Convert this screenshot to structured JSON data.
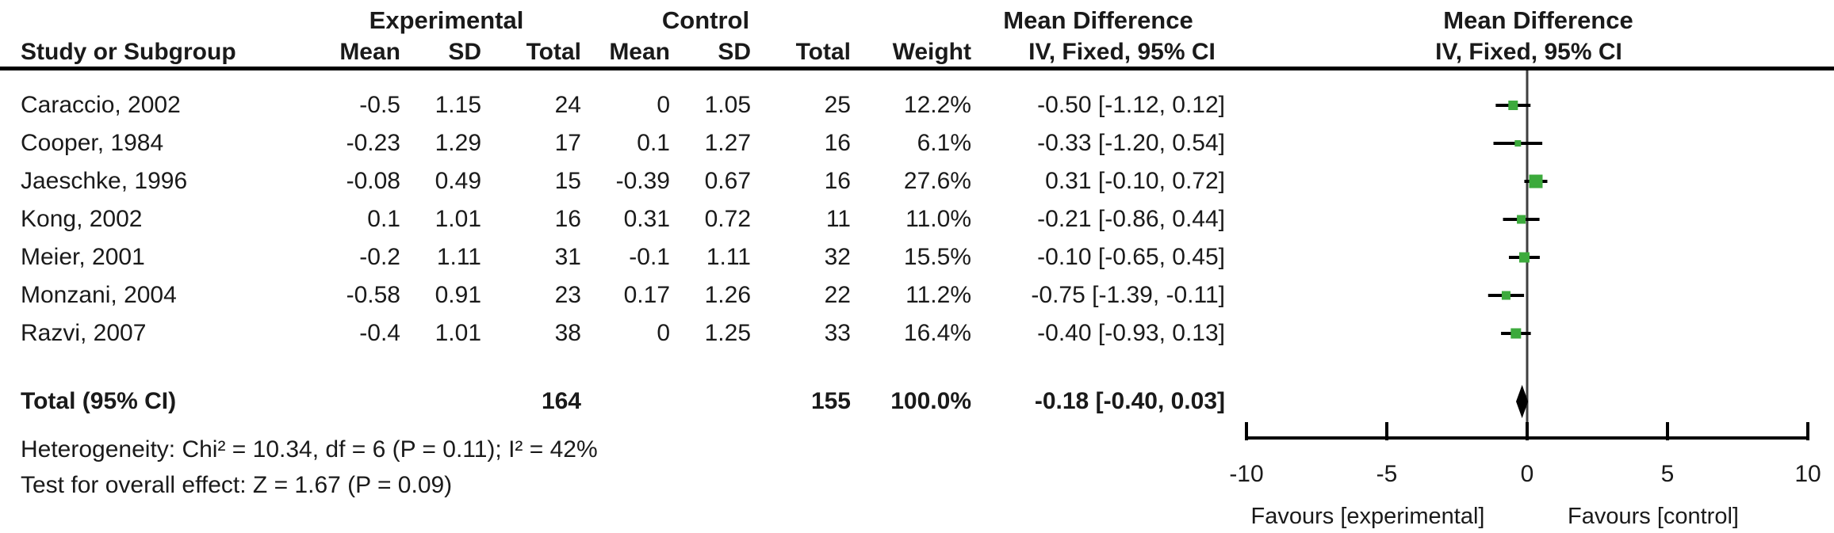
{
  "header": {
    "group_experimental": "Experimental",
    "group_control": "Control",
    "effect_header_table": "Mean Difference",
    "effect_header_plot": "Mean Difference",
    "col_study": "Study or Subgroup",
    "col_mean": "Mean",
    "col_sd": "SD",
    "col_total": "Total",
    "col_weight": "Weight",
    "col_ci": "IV, Fixed, 95% CI",
    "col_ci_plot": "IV, Fixed, 95% CI"
  },
  "footer": {
    "heterogeneity": "Heterogeneity: Chi² = 10.34, df = 6 (P = 0.11); I² = 42%",
    "overall_effect": "Test for overall effect: Z = 1.67 (P = 0.09)"
  },
  "chart_data": {
    "type": "forest",
    "effect_measure": "Mean Difference",
    "model": "IV, Fixed, 95% CI",
    "xlim": [
      -10,
      10
    ],
    "axis": {
      "ticks": [
        -10,
        -5,
        0,
        5,
        10
      ],
      "favours_left": "Favours [experimental]",
      "favours_right": "Favours [control]"
    },
    "colors": {
      "marker": "#3caa3c",
      "diamond": "#000000",
      "text": "#1a1a1a",
      "line": "#000000",
      "zero_line": "#3f3f3f"
    },
    "studies": [
      {
        "name": "Caraccio, 2002",
        "exp_mean": "-0.5",
        "exp_sd": "1.15",
        "exp_total": "24",
        "ctrl_mean": "0",
        "ctrl_sd": "1.05",
        "ctrl_total": "25",
        "weight": "12.2%",
        "ci_text": "-0.50 [-1.12, 0.12]",
        "md": -0.5,
        "lo": -1.12,
        "hi": 0.12,
        "w": 12.2
      },
      {
        "name": "Cooper, 1984",
        "exp_mean": "-0.23",
        "exp_sd": "1.29",
        "exp_total": "17",
        "ctrl_mean": "0.1",
        "ctrl_sd": "1.27",
        "ctrl_total": "16",
        "weight": "6.1%",
        "ci_text": "-0.33 [-1.20, 0.54]",
        "md": -0.33,
        "lo": -1.2,
        "hi": 0.54,
        "w": 6.1
      },
      {
        "name": "Jaeschke, 1996",
        "exp_mean": "-0.08",
        "exp_sd": "0.49",
        "exp_total": "15",
        "ctrl_mean": "-0.39",
        "ctrl_sd": "0.67",
        "ctrl_total": "16",
        "weight": "27.6%",
        "ci_text": "0.31 [-0.10, 0.72]",
        "md": 0.31,
        "lo": -0.1,
        "hi": 0.72,
        "w": 27.6
      },
      {
        "name": "Kong, 2002",
        "exp_mean": "0.1",
        "exp_sd": "1.01",
        "exp_total": "16",
        "ctrl_mean": "0.31",
        "ctrl_sd": "0.72",
        "ctrl_total": "11",
        "weight": "11.0%",
        "ci_text": "-0.21 [-0.86, 0.44]",
        "md": -0.21,
        "lo": -0.86,
        "hi": 0.44,
        "w": 11.0
      },
      {
        "name": "Meier, 2001",
        "exp_mean": "-0.2",
        "exp_sd": "1.11",
        "exp_total": "31",
        "ctrl_mean": "-0.1",
        "ctrl_sd": "1.11",
        "ctrl_total": "32",
        "weight": "15.5%",
        "ci_text": "-0.10 [-0.65, 0.45]",
        "md": -0.1,
        "lo": -0.65,
        "hi": 0.45,
        "w": 15.5
      },
      {
        "name": "Monzani, 2004",
        "exp_mean": "-0.58",
        "exp_sd": "0.91",
        "exp_total": "23",
        "ctrl_mean": "0.17",
        "ctrl_sd": "1.26",
        "ctrl_total": "22",
        "weight": "11.2%",
        "ci_text": "-0.75 [-1.39, -0.11]",
        "md": -0.75,
        "lo": -1.39,
        "hi": -0.11,
        "w": 11.2
      },
      {
        "name": "Razvi, 2007",
        "exp_mean": "-0.4",
        "exp_sd": "1.01",
        "exp_total": "38",
        "ctrl_mean": "0",
        "ctrl_sd": "1.25",
        "ctrl_total": "33",
        "weight": "16.4%",
        "ci_text": "-0.40 [-0.93, 0.13]",
        "md": -0.4,
        "lo": -0.93,
        "hi": 0.13,
        "w": 16.4
      }
    ],
    "total": {
      "label": "Total (95% CI)",
      "exp_total": "164",
      "ctrl_total": "155",
      "weight": "100.0%",
      "ci_text": "-0.18 [-0.40, 0.03]",
      "md": -0.18,
      "lo": -0.4,
      "hi": 0.03
    }
  }
}
